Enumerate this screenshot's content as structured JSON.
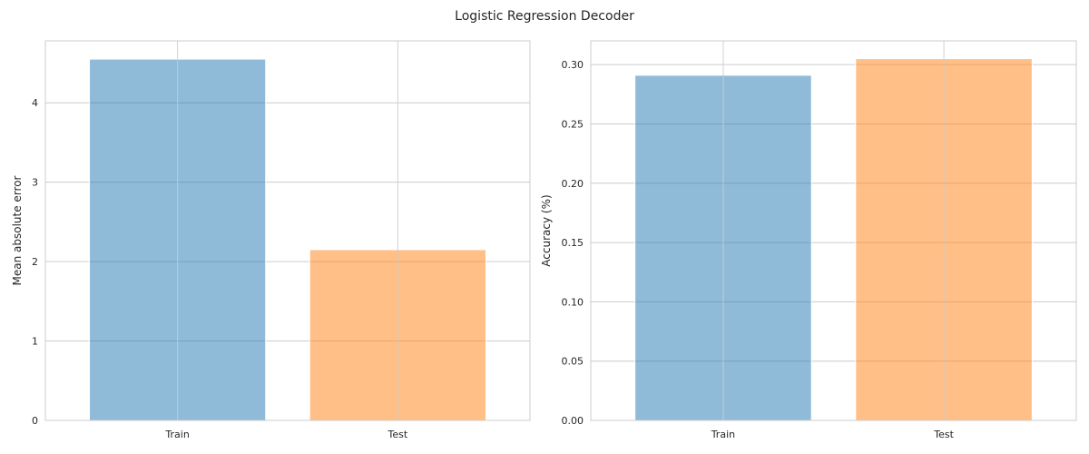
{
  "suptitle": "Logistic Regression Decoder",
  "colors": {
    "series_1": "#1f77b4",
    "series_2": "#ff7f0e",
    "grid": "#cccccc",
    "bar_alpha": 0.5
  },
  "chart_data": [
    {
      "type": "bar",
      "title": "",
      "categories": [
        "Train",
        "Test"
      ],
      "values": [
        4.55,
        2.15
      ],
      "xlabel": "",
      "ylabel": "Mean absolute error",
      "ylim": [
        0,
        4.78
      ],
      "yticks": [
        0,
        1,
        2,
        3,
        4
      ],
      "ytick_labels": [
        "0",
        "1",
        "2",
        "3",
        "4"
      ],
      "grid": true
    },
    {
      "type": "bar",
      "title": "",
      "categories": [
        "Train",
        "Test"
      ],
      "values": [
        0.291,
        0.305
      ],
      "xlabel": "",
      "ylabel": "Accuracy (%)",
      "ylim": [
        0,
        0.32
      ],
      "yticks": [
        0,
        0.05,
        0.1,
        0.15,
        0.2,
        0.25,
        0.3
      ],
      "ytick_labels": [
        "0.00",
        "0.05",
        "0.10",
        "0.15",
        "0.20",
        "0.25",
        "0.30"
      ],
      "grid": true
    }
  ]
}
